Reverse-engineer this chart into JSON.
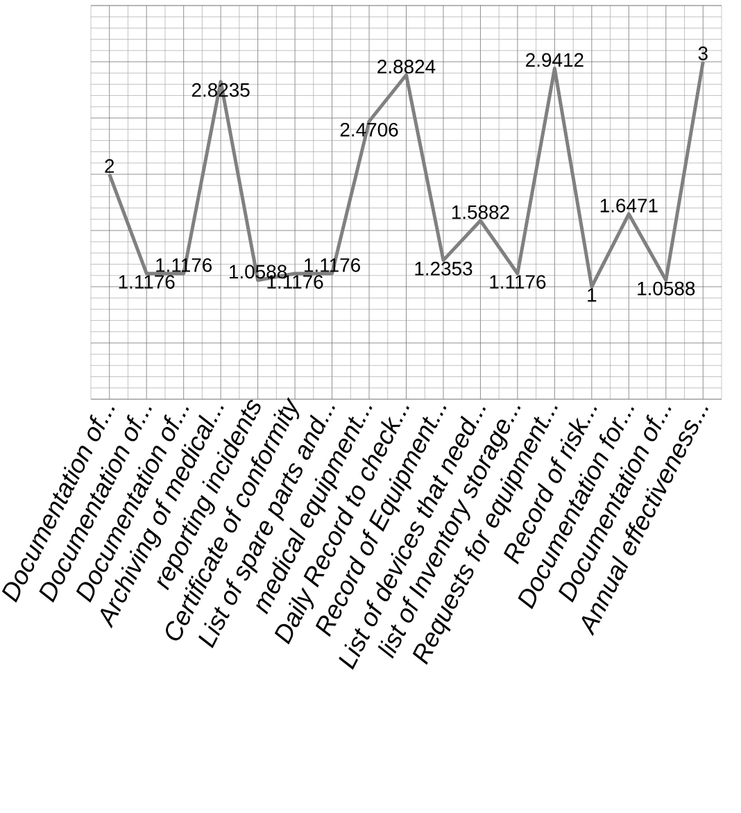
{
  "chart_data": {
    "type": "line",
    "categories": [
      "Documentation of...",
      "Documentation of...",
      "Documentation of...",
      "Archiving of medical...",
      "reporting incidents",
      "Certificate of conformity",
      "List of spare parts and...",
      "medical equipment...",
      "Daily Record to check...",
      "Record of Equipment...",
      "List of devices that need...",
      "list of Inventory storage...",
      "Requests for equipment...",
      "Record of  risk...",
      "Documentation for...",
      "Documentation of...",
      "Annual effectiveness..."
    ],
    "values": [
      2,
      1.1176,
      1.1176,
      2.8235,
      1.0588,
      1.1176,
      1.1176,
      2.4706,
      2.8824,
      1.2353,
      1.5882,
      1.1176,
      2.9412,
      1,
      1.6471,
      1.0588,
      3
    ],
    "color": "#808080",
    "data_labels": true,
    "grid": true,
    "marker": "none",
    "line_style": "solid",
    "tick_labels": "x",
    "ylim": [
      0,
      3.5
    ],
    "yticks": [
      {
        "value": 0,
        "label": null
      },
      {
        "value": 0.5,
        "label": null
      },
      {
        "value": 1,
        "label": null
      },
      {
        "value": 1.5,
        "label": null
      },
      {
        "value": 2,
        "label": null
      },
      {
        "value": 2.5,
        "label": null
      },
      {
        "value": 3,
        "label": null
      },
      {
        "value": 3.5,
        "label": null
      }
    ]
  }
}
